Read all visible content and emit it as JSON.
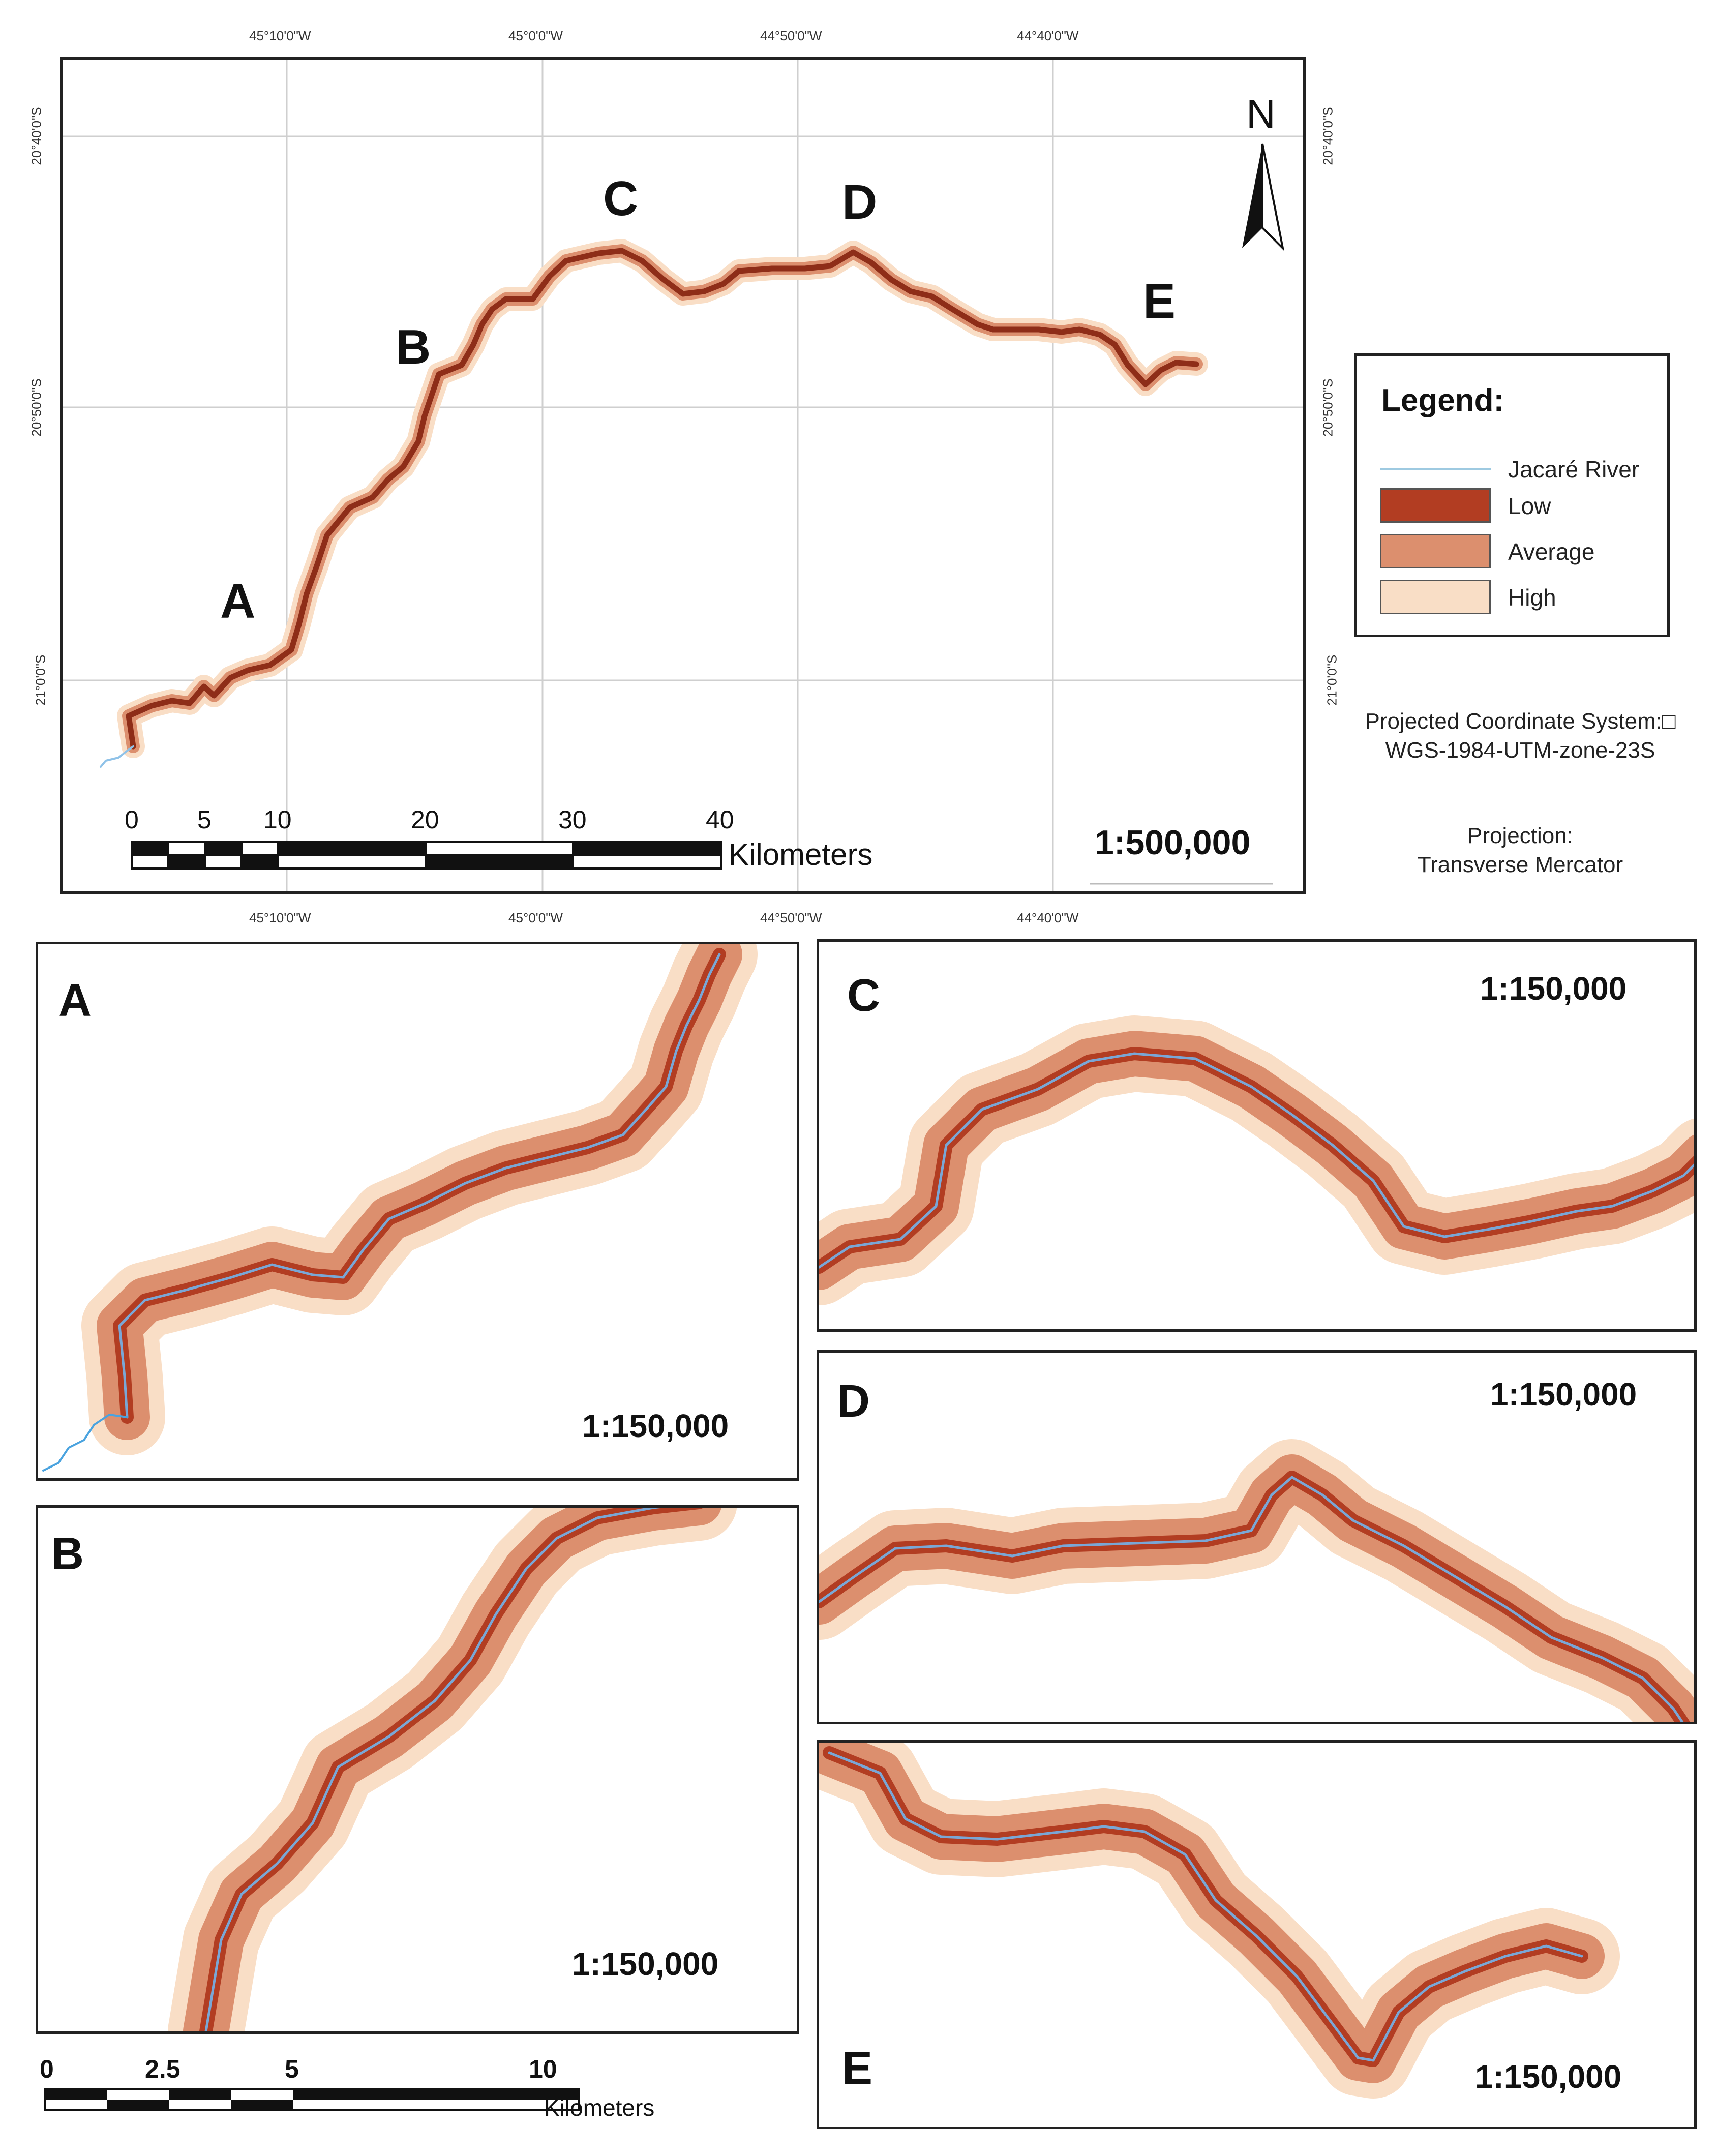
{
  "main_map": {
    "scale": "1:500,000",
    "north_label": "N",
    "sites": [
      "A",
      "B",
      "C",
      "D",
      "E"
    ],
    "lon_top": [
      "45°10'0\"W",
      "45°0'0\"W",
      "44°50'0\"W",
      "44°40'0\"W"
    ],
    "lon_bottom": [
      "45°10'0\"W",
      "45°0'0\"W",
      "44°50'0\"W",
      "44°40'0\"W"
    ],
    "lat_left": [
      "20°40'0\"S",
      "20°50'0\"S",
      "21°0'0\"S"
    ],
    "lat_right": [
      "20°40'0\"S",
      "20°50'0\"S",
      "21°0'0\"S"
    ],
    "scalebar": {
      "ticks": [
        "0",
        "5",
        "10",
        "20",
        "30",
        "40"
      ],
      "unit": "Kilometers"
    }
  },
  "legend": {
    "title": "Legend:",
    "items": [
      {
        "label": "Jacaré River",
        "color": "#9ecae1",
        "kind": "line"
      },
      {
        "label": "Low",
        "color": "#b23d22",
        "kind": "fill"
      },
      {
        "label": "Average",
        "color": "#dc8f6e",
        "kind": "fill"
      },
      {
        "label": "High",
        "color": "#f9dec6",
        "kind": "fill"
      }
    ]
  },
  "coordinate_info": {
    "system_label": "Projected Coordinate System:□",
    "system_value": "WGS-1984-UTM-zone-23S",
    "projection_label": "Projection:",
    "projection_value": "Transverse Mercator"
  },
  "insets": [
    {
      "letter": "A",
      "scale": "1:150,000"
    },
    {
      "letter": "B",
      "scale": "1:150,000"
    },
    {
      "letter": "C",
      "scale": "1:150,000"
    },
    {
      "letter": "D",
      "scale": "1:150,000"
    },
    {
      "letter": "E",
      "scale": "1:150,000"
    }
  ],
  "inset_scalebar": {
    "ticks": [
      "0",
      "2.5",
      "5",
      "10"
    ],
    "unit": "Kilometers"
  }
}
